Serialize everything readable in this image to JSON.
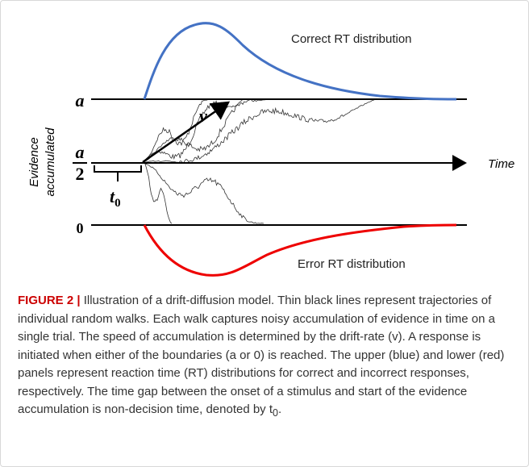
{
  "figure": {
    "correct_label": "Correct RT distribution",
    "error_label": "Error RT distribution",
    "upper_boundary": "a",
    "start_numerator": "a",
    "start_denominator": "2",
    "lower_boundary": "0",
    "y_label": [
      "Evidence",
      "accumulated"
    ],
    "x_label": "Time",
    "drift_label": "v",
    "nondecision_label": "t",
    "nondecision_subscript": "0"
  },
  "caption": {
    "label": "FIGURE 2 |",
    "text": "Illustration of a drift-diffusion model. Thin black lines represent trajectories of individual random walks. Each walk captures noisy accumulation of evidence in time on a single trial. The speed of accumulation is determined by the drift-rate (v). A response is initiated when either of the boundaries (a or 0) is reached. The upper (blue) and lower (red) panels represent reaction time (RT) distributions for correct and incorrect responses, respectively. The time gap between the onset of a stimulus and start of the evidence accumulation is non-decision time, denoted by t",
    "subscript": "0",
    "end": "."
  }
}
